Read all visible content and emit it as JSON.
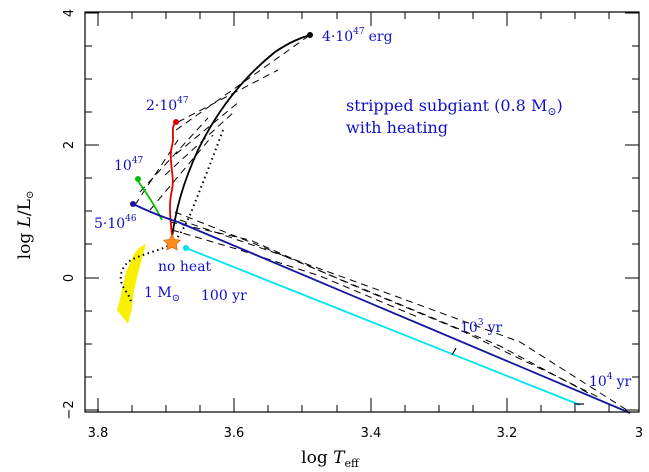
{
  "chart_data": {
    "type": "line",
    "xlabel": "log T_eff",
    "ylabel": "log L/L_sun",
    "xlim": [
      3.85,
      3.0
    ],
    "ylim": [
      -2.1,
      4.0
    ],
    "x_ticks": [
      "3.8",
      "3.6",
      "3.4",
      "3.2",
      "3"
    ],
    "y_ticks": [
      "4",
      "2",
      "0",
      "−2"
    ],
    "title_lines": [
      "stripped subgiant (0.8 M",
      ")",
      "with heating"
    ],
    "annotations": {
      "e4_47": "4·10",
      "e2_47": "2·10",
      "e1_47": "10",
      "e5_46": "5·10",
      "exp47": "47",
      "exp46": "46",
      "erg": "erg",
      "no_heat": "no heat",
      "one_msun": "1 M",
      "t100": "100 yr",
      "t1e3": "10",
      "t1e3_exp": "3",
      "t1e3_unit": "yr",
      "t1e4": "10",
      "t1e4_exp": "4",
      "t1e4_unit": "yr"
    },
    "colors": {
      "blue_text": "#1010c8",
      "red": "#e00000",
      "green": "#00c000",
      "cyan": "#00e5ee",
      "navy": "#1515a0",
      "yellow": "#f8f000",
      "orange": "#ff8c1a"
    },
    "series": [
      {
        "name": "4·10^47 erg",
        "style": "solid",
        "color": "black",
        "x": [
          3.688,
          3.672,
          3.645,
          3.612,
          3.572,
          3.532,
          3.505,
          3.49
        ],
        "y": [
          0.55,
          1.1,
          1.75,
          2.4,
          3.0,
          3.4,
          3.6,
          3.65
        ]
      },
      {
        "name": "2·10^47",
        "style": "solid",
        "color": "red",
        "x": [
          3.688,
          3.687,
          3.694,
          3.688,
          3.692,
          3.686,
          3.692,
          3.688
        ],
        "y": [
          0.55,
          0.9,
          1.35,
          1.75,
          2.1,
          2.25,
          2.3,
          2.32
        ]
      },
      {
        "name": "10^47",
        "style": "solid",
        "color": "green",
        "x": [
          3.704,
          3.722,
          3.734,
          3.741
        ],
        "y": [
          0.8,
          1.05,
          1.3,
          1.48
        ]
      },
      {
        "name": "5·10^46",
        "style": "solid",
        "color": "navy",
        "x": [
          3.751,
          3.72,
          3.69,
          3.6,
          3.45,
          3.3,
          3.15,
          3.0
        ],
        "y": [
          1.1,
          0.8,
          0.64,
          0.33,
          -0.2,
          -0.75,
          -1.4,
          -2.05
        ]
      },
      {
        "name": "no heat",
        "style": "solid",
        "color": "cyan",
        "x": [
          3.668,
          3.5,
          3.3,
          3.1,
          3.097
        ],
        "y": [
          0.46,
          -0.21,
          -0.99,
          -1.86,
          -1.88
        ]
      },
      {
        "name": "",
        "style": "dotted",
        "color": "black",
        "x": [
          3.61,
          3.63,
          3.66,
          3.68,
          3.695,
          3.72,
          3.745,
          3.758,
          3.745,
          3.735
        ],
        "y": [
          2.25,
          1.6,
          1.0,
          0.7,
          0.55,
          0.5,
          0.35,
          0.15,
          -0.05,
          -0.2
        ]
      }
    ],
    "dashed_isochrones": [
      {
        "x": [
          3.685,
          3.61,
          3.5,
          3.4,
          3.3,
          3.2,
          3.1,
          3.0
        ],
        "y": [
          1.5,
          0.55,
          0.2,
          -0.25,
          -0.72,
          -1.2,
          -1.7,
          -2.05
        ]
      },
      {
        "x": [
          3.71,
          3.62,
          3.52,
          3.42,
          3.3,
          3.2,
          3.1,
          3.03
        ],
        "y": [
          0.8,
          0.55,
          0.13,
          -0.3,
          -0.78,
          -1.23,
          -1.75,
          -1.94
        ]
      }
    ],
    "time_marks": [
      {
        "label": "10^3 yr",
        "x": 3.285,
        "y": -0.95
      },
      {
        "label": "10^4 yr",
        "x": 3.08,
        "y": -1.88
      }
    ],
    "markers": [
      {
        "symbol": "star",
        "color": "orange",
        "x": 3.688,
        "y": 0.55
      },
      {
        "symbol": "dot",
        "color": "black",
        "x": 3.49,
        "y": 3.65
      },
      {
        "symbol": "dot",
        "color": "red",
        "x": 3.686,
        "y": 2.32
      },
      {
        "symbol": "dot",
        "color": "green",
        "x": 3.741,
        "y": 1.48
      },
      {
        "symbol": "dot",
        "color": "navy",
        "x": 3.751,
        "y": 1.1
      },
      {
        "symbol": "dot",
        "color": "cyan",
        "x": 3.668,
        "y": 0.46
      }
    ]
  }
}
